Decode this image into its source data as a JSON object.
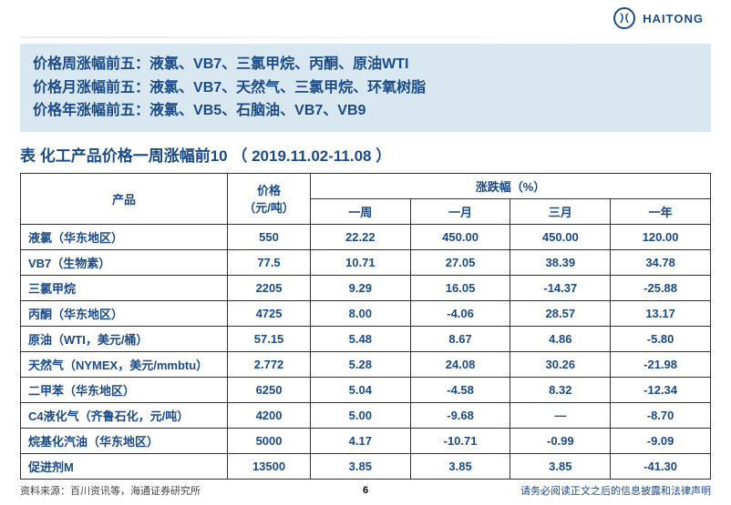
{
  "brand": {
    "name": "HAITONG",
    "logo_glyph": "ݮ"
  },
  "highlights": {
    "week": {
      "label": "价格周涨幅前五：",
      "items": "液氯、VB7、三氯甲烷、丙酮、原油WTI"
    },
    "month": {
      "label": "价格月涨幅前五：",
      "items": "液氯、VB7、天然气、三氯甲烷、环氧树脂"
    },
    "year": {
      "label": "价格年涨幅前五：",
      "items": "液氯、VB5、石脑油、VB7、VB9"
    }
  },
  "table": {
    "title": "表 化工产品价格一周涨幅前10 （ 2019.11.02-11.08 ）",
    "header": {
      "product": "产品",
      "price": "价格\n（元/吨）",
      "chg_group": "涨跌幅（%）",
      "periods": [
        "一周",
        "一月",
        "三月",
        "一年"
      ]
    },
    "rows": [
      {
        "product": "液氯（华东地区）",
        "price": "550",
        "w": "22.22",
        "m": "450.00",
        "q": "450.00",
        "y": "120.00"
      },
      {
        "product": "VB7（生物素）",
        "price": "77.5",
        "w": "10.71",
        "m": "27.05",
        "q": "38.39",
        "y": "34.78"
      },
      {
        "product": "三氯甲烷",
        "price": "2205",
        "w": "9.29",
        "m": "16.05",
        "q": "-14.37",
        "y": "-25.88"
      },
      {
        "product": "丙酮（华东地区）",
        "price": "4725",
        "w": "8.00",
        "m": "-4.06",
        "q": "28.57",
        "y": "13.17"
      },
      {
        "product": "原油（WTI，美元/桶）",
        "price": "57.15",
        "w": "5.48",
        "m": "8.67",
        "q": "4.86",
        "y": "-5.80"
      },
      {
        "product": "天然气（NYMEX，美元/mmbtu）",
        "price": "2.772",
        "w": "5.28",
        "m": "24.08",
        "q": "30.26",
        "y": "-21.98"
      },
      {
        "product": "二甲苯（华东地区）",
        "price": "6250",
        "w": "5.04",
        "m": "-4.58",
        "q": "8.32",
        "y": "-12.34"
      },
      {
        "product": "C4液化气（齐鲁石化，元/吨）",
        "price": "4200",
        "w": "5.00",
        "m": "-9.68",
        "q": "—",
        "y": "-8.70"
      },
      {
        "product": "烷基化汽油（华东地区）",
        "price": "5000",
        "w": "4.17",
        "m": "-10.71",
        "q": "-0.99",
        "y": "-9.09"
      },
      {
        "product": "促进剂M",
        "price": "13500",
        "w": "3.85",
        "m": "3.85",
        "q": "3.85",
        "y": "-41.30"
      }
    ],
    "col_widths": {
      "product": "30%",
      "price": "12%",
      "period": "14.5%"
    },
    "colors": {
      "text": "#1a4a8a",
      "border": "#333333",
      "highlight_bg": "#d9e8f0"
    }
  },
  "footer": {
    "source": "资料来源：百川资讯等，海通证券研究所",
    "page": "6",
    "disclaimer": "请务必阅读正文之后的信息披露和法律声明"
  }
}
